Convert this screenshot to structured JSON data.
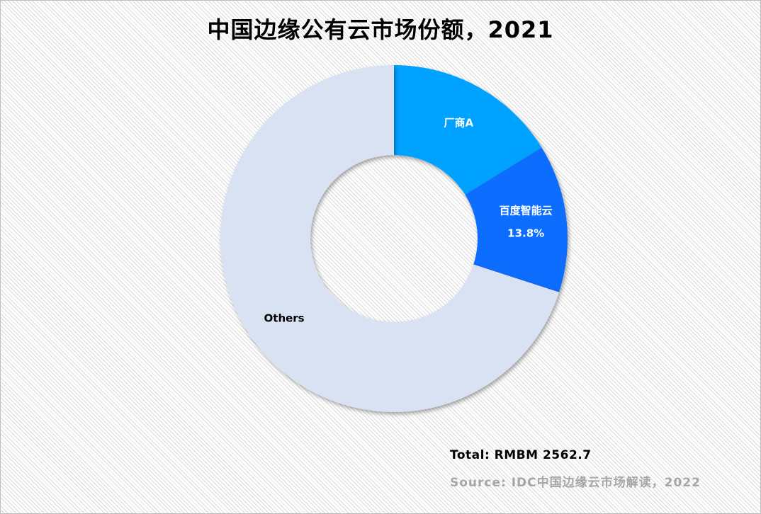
{
  "chart_data": {
    "type": "pie",
    "title": "中国边缘公有云市场份额，2021",
    "hole": true,
    "slices": [
      {
        "label": "厂商A",
        "value": 16.2,
        "value_label": "",
        "color": "#00a2ff",
        "label_color": "#ffffff"
      },
      {
        "label": "百度智能云",
        "value": 13.8,
        "value_label": "13.8%",
        "color": "#0d6dff",
        "label_color": "#ffffff"
      },
      {
        "label": "Others",
        "value": 70.0,
        "value_label": "",
        "color": "#d9e2f3",
        "label_color": "#000000"
      }
    ]
  },
  "notes": {
    "total": "Total: RMBM 2562.7",
    "source": "Source: IDC中国边缘云市场解读，2022"
  }
}
